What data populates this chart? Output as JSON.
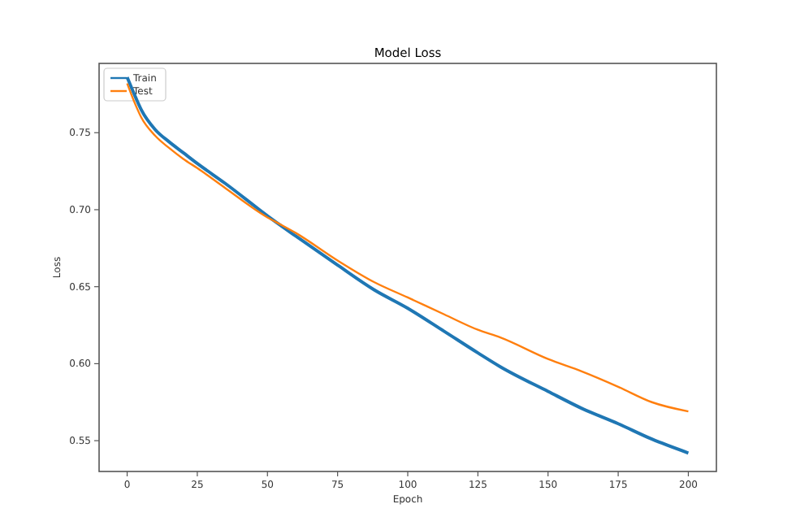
{
  "chart_data": {
    "type": "line",
    "title": "Model Loss",
    "xlabel": "Epoch",
    "ylabel": "Loss",
    "xlim": [
      -10,
      210
    ],
    "ylim": [
      0.53,
      0.795
    ],
    "xticks": [
      0,
      25,
      50,
      75,
      100,
      125,
      150,
      175,
      200
    ],
    "yticks": [
      {
        "value": 0.55,
        "label": "0.55"
      },
      {
        "value": 0.6,
        "label": "0.60"
      },
      {
        "value": 0.65,
        "label": "0.65"
      },
      {
        "value": 0.7,
        "label": "0.70"
      },
      {
        "value": 0.75,
        "label": "0.75"
      }
    ],
    "legend": "top left",
    "grid": false,
    "x": [
      0,
      3,
      5,
      10,
      15,
      20,
      25,
      35,
      50,
      53,
      60,
      75,
      88,
      100,
      113,
      125,
      133,
      150,
      162,
      175,
      187,
      200
    ],
    "series": [
      {
        "name": "Train",
        "color": "#1f77b4",
        "values": [
          0.786,
          0.773,
          0.765,
          0.752,
          0.744,
          0.737,
          0.73,
          0.717,
          0.696,
          0.692,
          0.683,
          0.664,
          0.648,
          0.636,
          0.621,
          0.607,
          0.598,
          0.582,
          0.571,
          0.561,
          0.551,
          0.542
        ]
      },
      {
        "name": "Test",
        "color": "#ff7f0e",
        "values": [
          0.782,
          0.768,
          0.76,
          0.748,
          0.74,
          0.733,
          0.727,
          0.714,
          0.695,
          0.692,
          0.685,
          0.667,
          0.653,
          0.643,
          0.632,
          0.622,
          0.617,
          0.603,
          0.595,
          0.585,
          0.575,
          0.569
        ]
      }
    ]
  }
}
